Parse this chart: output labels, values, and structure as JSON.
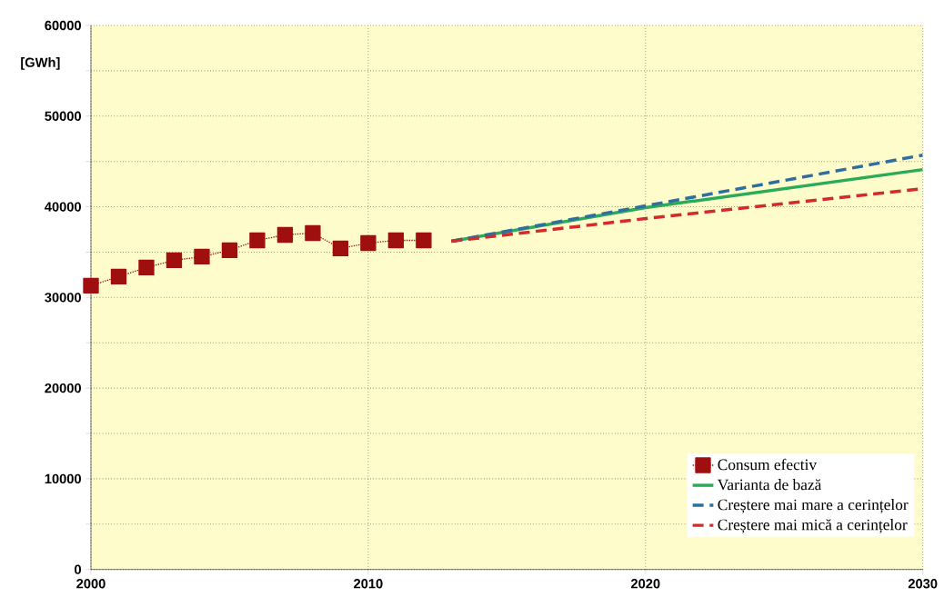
{
  "chart_data": {
    "type": "line",
    "ylabel": "[GWh]",
    "xlim": [
      2000,
      2030
    ],
    "xticks": [
      2000,
      2010,
      2020,
      2030
    ],
    "ylim": [
      0,
      60000
    ],
    "yticks": [
      0,
      {
        "value": 5000,
        "label": null
      },
      10000,
      {
        "value": 15000,
        "label": null
      },
      20000,
      {
        "value": 25000,
        "label": null
      },
      30000,
      {
        "value": 35000,
        "label": null
      },
      40000,
      {
        "value": 45000,
        "label": null
      },
      50000,
      {
        "value": 55000,
        "label": null
      },
      60000
    ],
    "grid": true,
    "legend": "bottom right",
    "series": [
      {
        "name": "Consum efectiv",
        "color": "#a00f0f",
        "marker": "square",
        "line_style": "dotted",
        "x": [
          2000,
          2001,
          2002,
          2003,
          2004,
          2005,
          2006,
          2007,
          2008,
          2009,
          2010,
          2011,
          2012
        ],
        "values": [
          31300,
          32300,
          33300,
          34100,
          34500,
          35200,
          36300,
          36900,
          37100,
          35400,
          36000,
          36300,
          36300
        ]
      },
      {
        "name": "Varianta de bază",
        "color": "#2bab5a",
        "line_style": "solid",
        "x": [
          2013,
          2020,
          2030
        ],
        "values": [
          36200,
          39900,
          44100
        ]
      },
      {
        "name": "Creștere mai mare a cerințelor",
        "color": "#2f6e9e",
        "line_style": "dashed",
        "x": [
          2013,
          2020,
          2030
        ],
        "values": [
          36200,
          40100,
          45700
        ]
      },
      {
        "name": "Creștere mai mică a cerințelor",
        "color": "#d42a2a",
        "line_style": "dashed",
        "x": [
          2013,
          2020,
          2030
        ],
        "values": [
          36200,
          38700,
          42000
        ]
      }
    ]
  }
}
